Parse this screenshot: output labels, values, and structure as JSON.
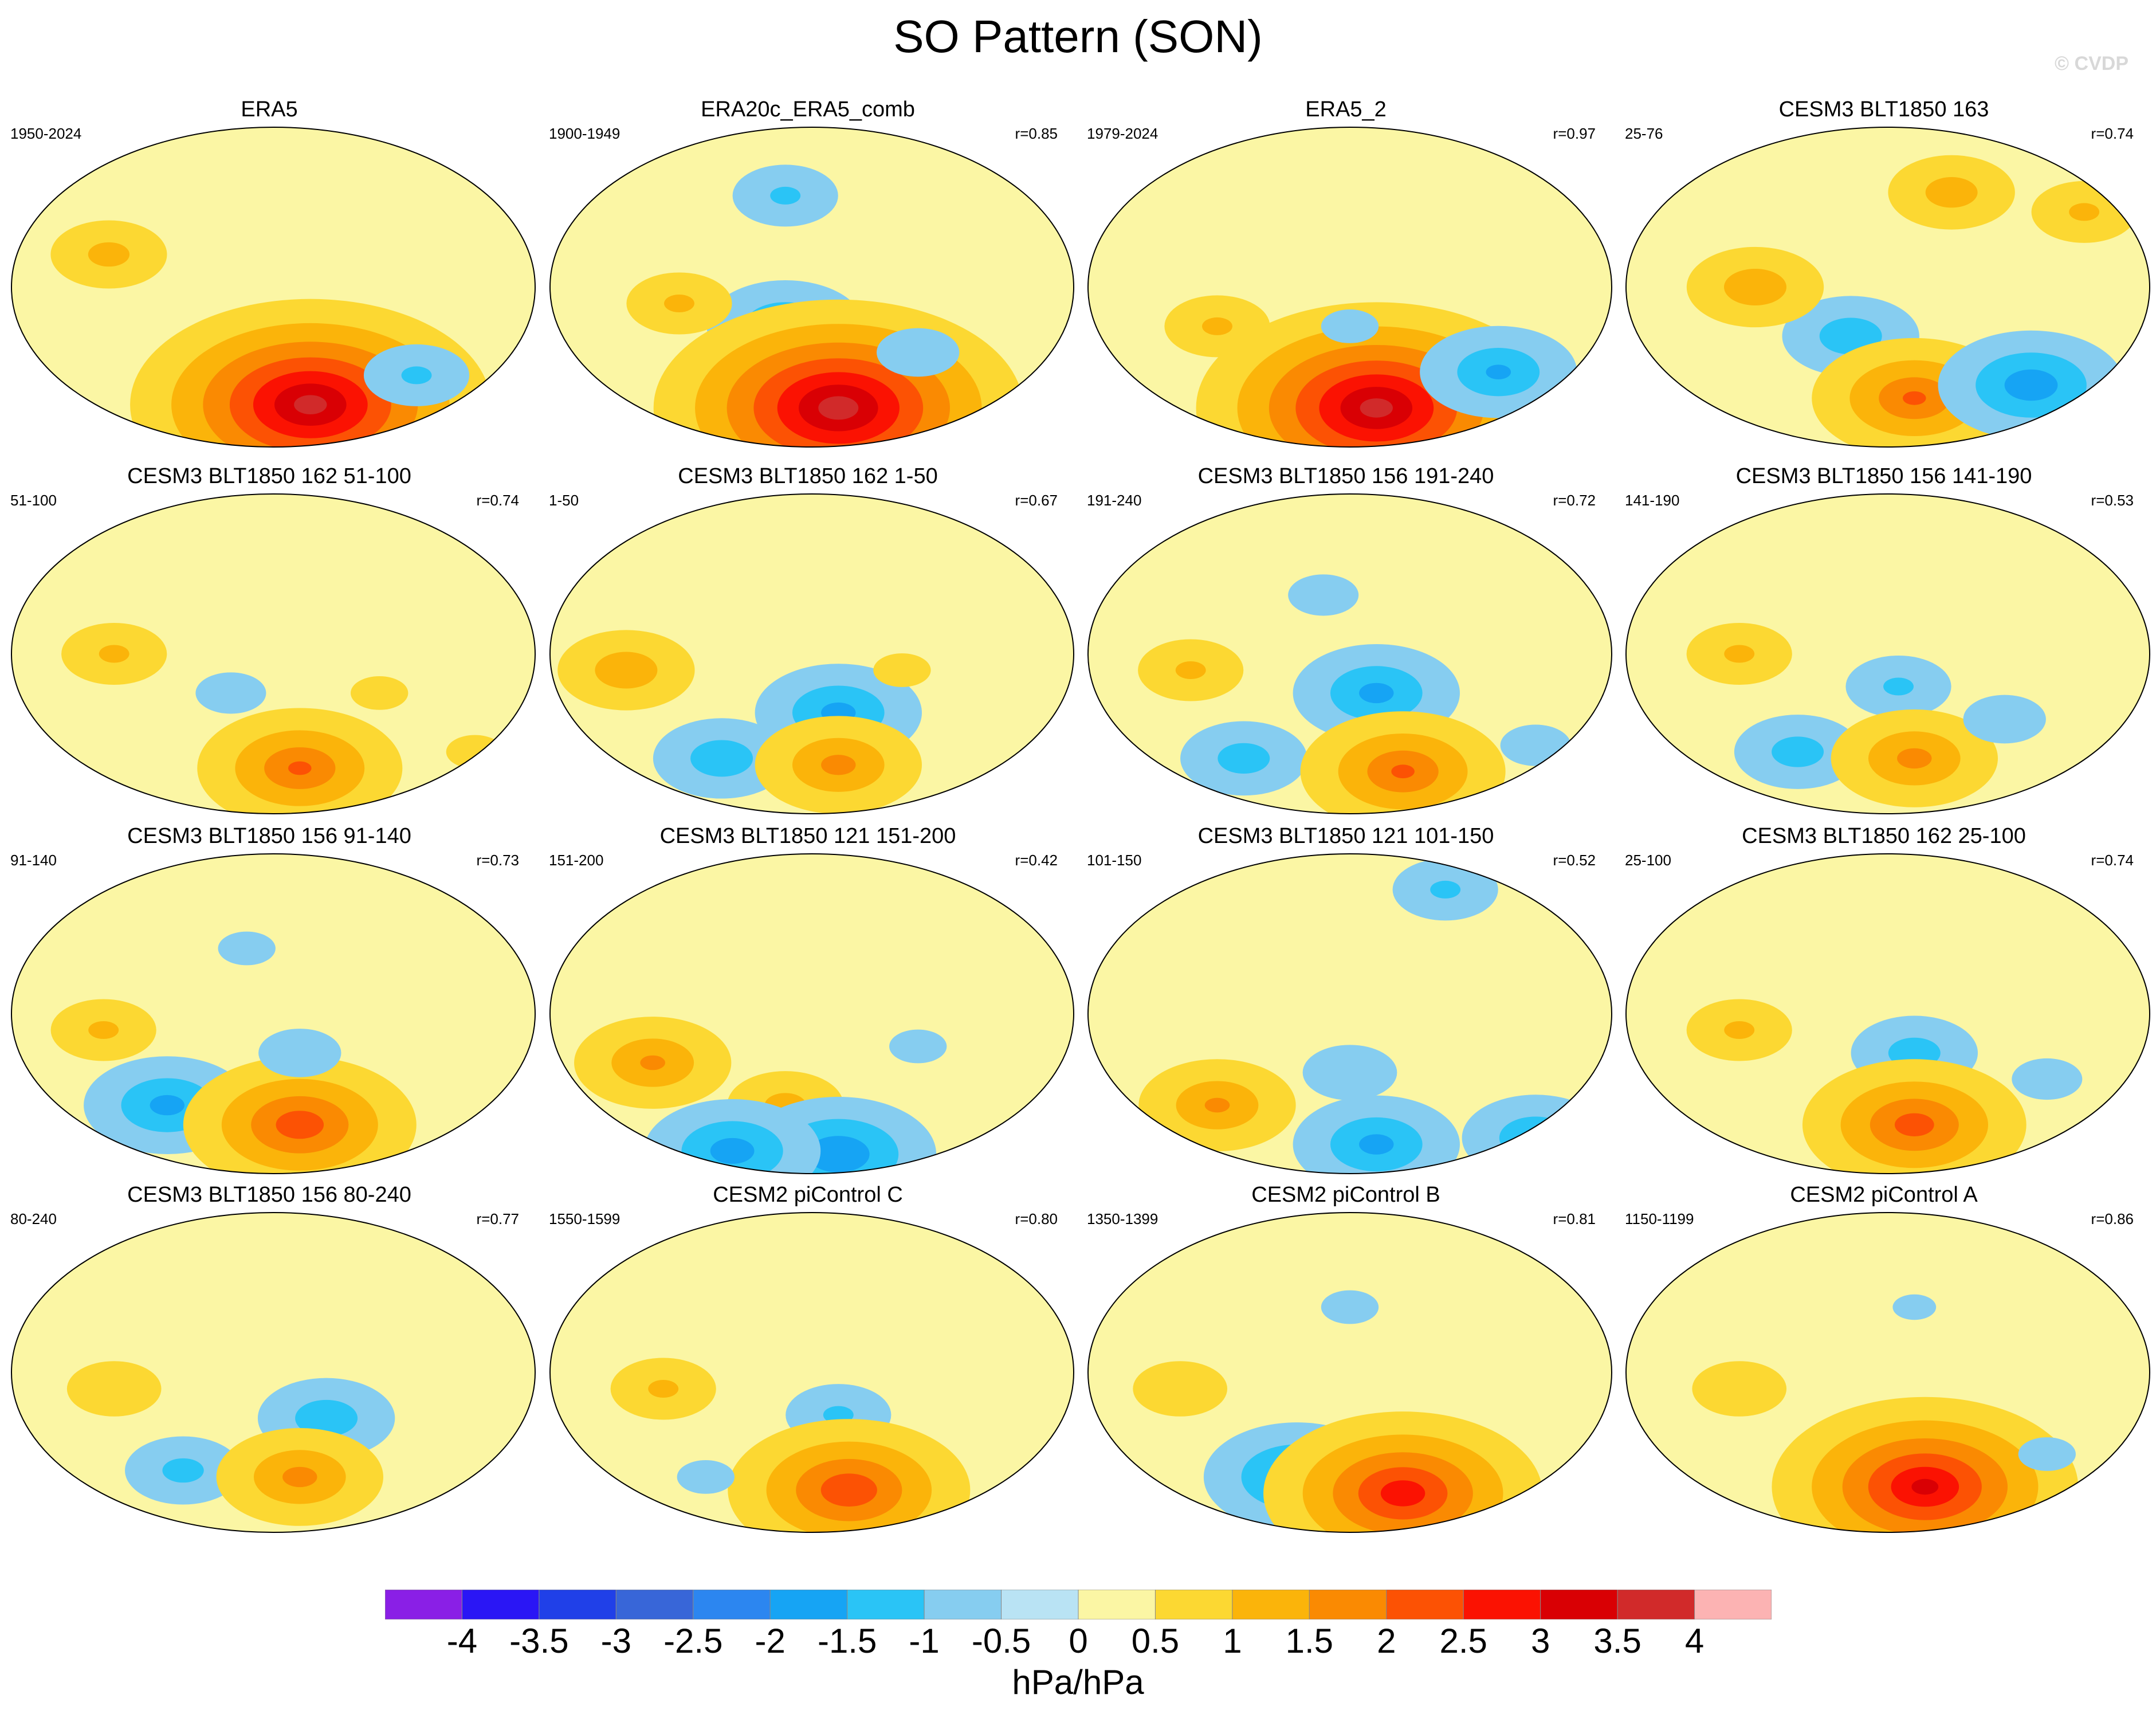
{
  "title": "SO Pattern (SON)",
  "watermark": "© CVDP",
  "panels": [
    {
      "title": "ERA5",
      "left": "1950-2024",
      "right": "",
      "anom": [
        [
          0.4,
          0.72,
          -0.55
        ],
        [
          0.2,
          0.65,
          -0.35
        ],
        [
          0.52,
          0.76,
          -1.25
        ],
        [
          0.57,
          0.86,
          3.7
        ],
        [
          0.19,
          0.4,
          1.1
        ],
        [
          0.47,
          0.22,
          -0.45
        ],
        [
          0.77,
          0.77,
          -1.0
        ]
      ]
    },
    {
      "title": "ERA20c_ERA5_comb",
      "left": "1900-1949",
      "right": "r=0.85",
      "anom": [
        [
          0.45,
          0.62,
          -1.5
        ],
        [
          0.25,
          0.55,
          1.0
        ],
        [
          0.55,
          0.79,
          -1.6
        ],
        [
          0.55,
          0.87,
          3.8
        ],
        [
          0.45,
          0.22,
          -1.0
        ],
        [
          0.7,
          0.7,
          -0.8
        ]
      ]
    },
    {
      "title": "ERA5_2",
      "left": "1979-2024",
      "right": "r=0.97",
      "anom": [
        [
          0.45,
          0.72,
          -1.2
        ],
        [
          0.25,
          0.62,
          1.0
        ],
        [
          0.55,
          0.87,
          3.7
        ],
        [
          0.78,
          0.76,
          -1.5
        ],
        [
          0.5,
          0.62,
          -0.6
        ]
      ]
    },
    {
      "title": "CESM3 BLT1850 163",
      "left": "25-76",
      "right": "r=0.74",
      "anom": [
        [
          0.43,
          0.65,
          -1.3
        ],
        [
          0.25,
          0.5,
          1.3
        ],
        [
          0.55,
          0.84,
          2.0
        ],
        [
          0.77,
          0.8,
          -1.8
        ],
        [
          0.62,
          0.21,
          1.2
        ],
        [
          0.87,
          0.27,
          1.0
        ]
      ]
    },
    {
      "title": "CESM3 BLT1850 162 51-100",
      "left": "51-100",
      "right": "r=0.74",
      "anom": [
        [
          0.42,
          0.62,
          -0.7
        ],
        [
          0.2,
          0.5,
          1.0
        ],
        [
          0.55,
          0.85,
          2.0
        ],
        [
          0.7,
          0.62,
          0.6
        ],
        [
          0.88,
          0.8,
          0.6
        ]
      ]
    },
    {
      "title": "CESM3 BLT1850 162 1-50",
      "left": "1-50",
      "right": "r=0.67",
      "anom": [
        [
          0.55,
          0.68,
          -1.6
        ],
        [
          0.33,
          0.82,
          -1.3
        ],
        [
          0.15,
          0.55,
          1.3
        ],
        [
          0.55,
          0.84,
          1.6
        ],
        [
          0.67,
          0.55,
          0.6
        ]
      ]
    },
    {
      "title": "CESM3 BLT1850 156 191-240",
      "left": "191-240",
      "right": "r=0.72",
      "anom": [
        [
          0.55,
          0.62,
          -1.6
        ],
        [
          0.3,
          0.82,
          -1.2
        ],
        [
          0.6,
          0.86,
          2.0
        ],
        [
          0.2,
          0.55,
          1.0
        ],
        [
          0.45,
          0.32,
          -0.7
        ],
        [
          0.85,
          0.78,
          -0.7
        ]
      ]
    },
    {
      "title": "CESM3 BLT1850 156 141-190",
      "left": "141-190",
      "right": "r=0.53",
      "anom": [
        [
          0.52,
          0.6,
          -1.0
        ],
        [
          0.33,
          0.8,
          -1.2
        ],
        [
          0.55,
          0.82,
          1.6
        ],
        [
          0.22,
          0.5,
          1.0
        ],
        [
          0.72,
          0.7,
          -0.8
        ]
      ]
    },
    {
      "title": "CESM3 BLT1850 156 91-140",
      "left": "91-140",
      "right": "r=0.73",
      "anom": [
        [
          0.3,
          0.78,
          -1.6
        ],
        [
          0.55,
          0.84,
          2.3
        ],
        [
          0.55,
          0.62,
          -0.8
        ],
        [
          0.18,
          0.55,
          1.0
        ],
        [
          0.45,
          0.3,
          -0.6
        ]
      ]
    },
    {
      "title": "CESM3 BLT1850 121 151-200",
      "left": "151-200",
      "right": "r=0.42",
      "anom": [
        [
          0.2,
          0.65,
          1.5
        ],
        [
          0.45,
          0.78,
          1.1
        ],
        [
          0.55,
          0.93,
          -1.9
        ],
        [
          0.35,
          0.92,
          -1.7
        ],
        [
          0.7,
          0.6,
          -0.6
        ]
      ]
    },
    {
      "title": "CESM3 BLT1850 121 101-150",
      "left": "101-150",
      "right": "r=0.52",
      "anom": [
        [
          0.5,
          0.68,
          -0.9
        ],
        [
          0.25,
          0.78,
          1.5
        ],
        [
          0.55,
          0.9,
          -1.6
        ],
        [
          0.85,
          0.88,
          -1.4
        ],
        [
          0.68,
          0.12,
          -1.0
        ]
      ]
    },
    {
      "title": "CESM3 BLT1850 162 25-100",
      "left": "25-100",
      "right": "r=0.74",
      "anom": [
        [
          0.55,
          0.62,
          -1.2
        ],
        [
          0.55,
          0.84,
          2.2
        ],
        [
          0.22,
          0.55,
          1.0
        ],
        [
          0.8,
          0.7,
          -0.7
        ]
      ]
    },
    {
      "title": "CESM3 BLT1850 156 80-240",
      "left": "80-240",
      "right": "r=0.77",
      "anom": [
        [
          0.6,
          0.64,
          -1.3
        ],
        [
          0.33,
          0.8,
          -1.1
        ],
        [
          0.55,
          0.82,
          1.6
        ],
        [
          0.2,
          0.55,
          0.9
        ]
      ]
    },
    {
      "title": "CESM2 piControl C",
      "left": "1550-1599",
      "right": "r=0.80",
      "anom": [
        [
          0.55,
          0.63,
          -1.0
        ],
        [
          0.57,
          0.86,
          2.4
        ],
        [
          0.22,
          0.55,
          1.0
        ],
        [
          0.3,
          0.82,
          -0.6
        ]
      ]
    },
    {
      "title": "CESM2 piControl B",
      "left": "1350-1399",
      "right": "r=0.81",
      "anom": [
        [
          0.4,
          0.82,
          -1.8
        ],
        [
          0.6,
          0.87,
          2.8
        ],
        [
          0.18,
          0.55,
          0.9
        ],
        [
          0.5,
          0.3,
          -0.6
        ]
      ]
    },
    {
      "title": "CESM2 piControl A",
      "left": "1150-1199",
      "right": "r=0.86",
      "anom": [
        [
          0.45,
          0.8,
          -1.2
        ],
        [
          0.57,
          0.85,
          3.1
        ],
        [
          0.22,
          0.55,
          0.9
        ],
        [
          0.8,
          0.75,
          -0.6
        ],
        [
          0.55,
          0.3,
          -0.5
        ]
      ]
    }
  ],
  "colorbar": {
    "units": "hPa/hPa",
    "labels": [
      "-4",
      "-3.5",
      "-3",
      "-2.5",
      "-2",
      "-1.5",
      "-1",
      "-0.5",
      "0",
      "0.5",
      "1",
      "1.5",
      "2",
      "2.5",
      "3",
      "3.5",
      "4"
    ],
    "levels": [
      -4,
      -3.5,
      -3,
      -2.5,
      -2,
      -1.5,
      -1,
      -0.5,
      0,
      0.5,
      1,
      1.5,
      2,
      2.5,
      3,
      3.5,
      4
    ],
    "colors": [
      "#8a1fe6",
      "#2a16f5",
      "#2040e8",
      "#3866d8",
      "#2c86f0",
      "#16a4f4",
      "#2ac4f6",
      "#86cdf0",
      "#b9e3f4",
      "#fbf6a4",
      "#fcd832",
      "#fbb40a",
      "#fa8a02",
      "#fc5204",
      "#fb1202",
      "#d90004",
      "#d12a2a",
      "#fcb3b3"
    ]
  }
}
